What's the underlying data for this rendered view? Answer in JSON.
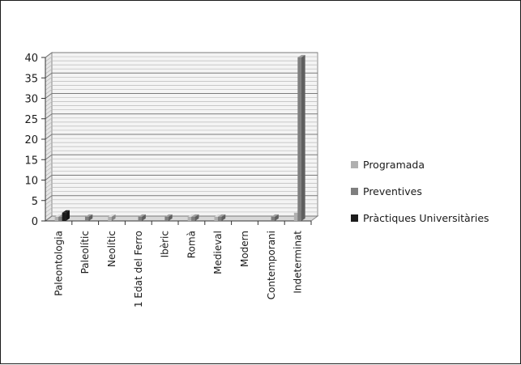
{
  "chart_data": {
    "type": "bar",
    "style": "3d-clustered-column",
    "categories": [
      "Paleontologia",
      "Paleolític",
      "Neolític",
      "1 Edat del Ferro",
      "Ibèric",
      "Romà",
      "Medieval",
      "Modern",
      "Contemporani",
      "Indeterminat"
    ],
    "series": [
      {
        "name": "Programada",
        "values": [
          1,
          0,
          1,
          0,
          0,
          1,
          1,
          0,
          0,
          2
        ],
        "color": "#b0b0b0"
      },
      {
        "name": "Preventives",
        "values": [
          1,
          1,
          0,
          1,
          1,
          1,
          1,
          0,
          1,
          40
        ],
        "color": "#7f7f7f"
      },
      {
        "name": "Pràctiques Universitàries",
        "values": [
          2,
          0,
          0,
          0,
          0,
          0,
          0,
          0,
          0,
          0
        ],
        "color": "#1c1c1c"
      }
    ],
    "yticks": [
      "0",
      "5",
      "10",
      "15",
      "20",
      "25",
      "30",
      "35",
      "40"
    ],
    "ylim": [
      0,
      40
    ],
    "grid": true,
    "legend_position": "right"
  }
}
